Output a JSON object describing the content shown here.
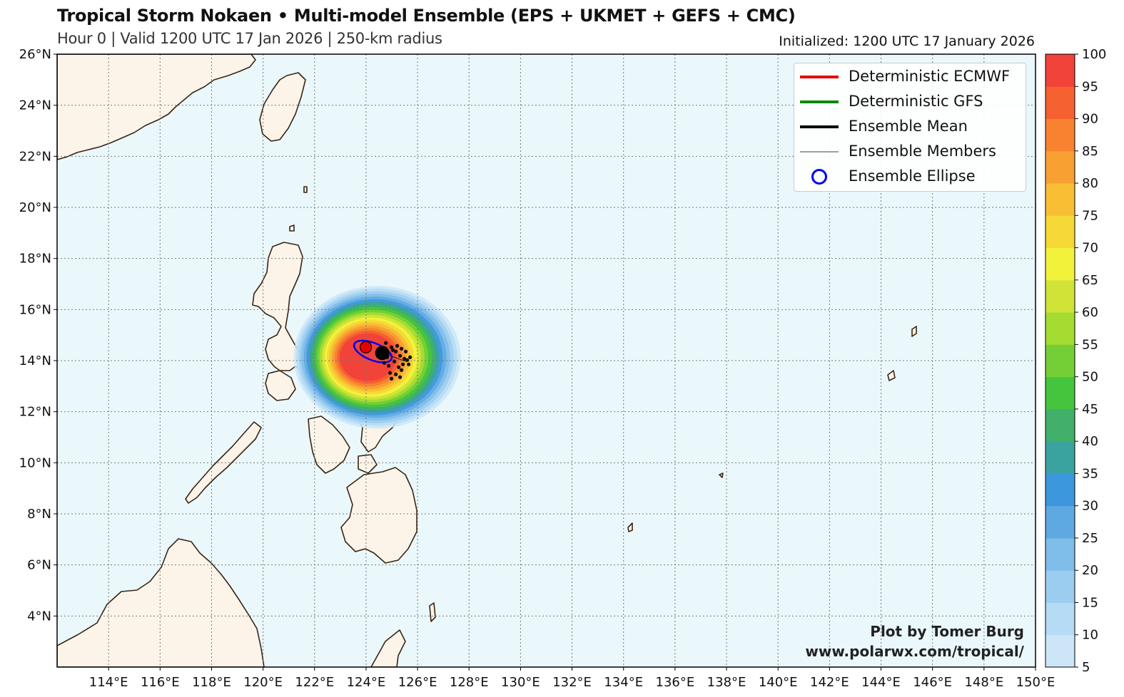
{
  "header": {
    "title": "Tropical Storm Nokaen • Multi-model Ensemble (EPS + UKMET + GEFS + CMC)",
    "subtitle": "Hour 0 | Valid 1200 UTC 17 Jan 2026 | 250-km radius",
    "initialized": "Initialized: 1200 UTC 17 January 2026"
  },
  "map": {
    "lon_range": [
      112,
      150
    ],
    "lat_range": [
      2,
      26
    ],
    "lon_ticks": [
      "114°E",
      "116°E",
      "118°E",
      "120°E",
      "122°E",
      "124°E",
      "126°E",
      "128°E",
      "130°E",
      "132°E",
      "134°E",
      "136°E",
      "138°E",
      "140°E",
      "142°E",
      "144°E",
      "146°E",
      "148°E",
      "150°E"
    ],
    "lat_ticks": [
      "4°N",
      "6°N",
      "8°N",
      "10°N",
      "12°N",
      "14°N",
      "16°N",
      "18°N",
      "20°N",
      "22°N",
      "24°N",
      "26°N"
    ],
    "gridlines": true,
    "colors": {
      "ocean": "#eaf8fc",
      "land": "#fcf4e8",
      "coast": "#3a2514",
      "grid": "#777777"
    }
  },
  "storm": {
    "center_lon": 124.6,
    "center_lat": 14.3,
    "probability_peak": 100
  },
  "legend": {
    "items": [
      {
        "label": "Deterministic ECMWF",
        "color": "#e60000",
        "kind": "thick-line"
      },
      {
        "label": "Deterministic GFS",
        "color": "#0a8a0a",
        "kind": "thick-line"
      },
      {
        "label": "Ensemble Mean",
        "color": "#000000",
        "kind": "thick-line"
      },
      {
        "label": "Ensemble Members",
        "color": "#000000",
        "kind": "thin-line"
      },
      {
        "label": "Ensemble Ellipse",
        "color": "#0000ee",
        "kind": "circle"
      }
    ]
  },
  "colorbar": {
    "ticks": [
      "5",
      "10",
      "15",
      "20",
      "25",
      "30",
      "35",
      "40",
      "45",
      "50",
      "55",
      "60",
      "65",
      "70",
      "75",
      "80",
      "85",
      "90",
      "95",
      "100"
    ],
    "colors": [
      "#cce6f7",
      "#b5dcf4",
      "#9bcdf0",
      "#7fbdea",
      "#5fa9e3",
      "#3d97dc",
      "#3aa3a0",
      "#40b06a",
      "#45c53e",
      "#74cf36",
      "#a5dc32",
      "#d0e438",
      "#f2f23a",
      "#f6d836",
      "#f8be34",
      "#f9a033",
      "#f8822f",
      "#f5612f",
      "#f1433a"
    ]
  },
  "credit": {
    "line1": "Plot by Tomer Burg",
    "line2": "www.polarwx.com/tropical/"
  }
}
